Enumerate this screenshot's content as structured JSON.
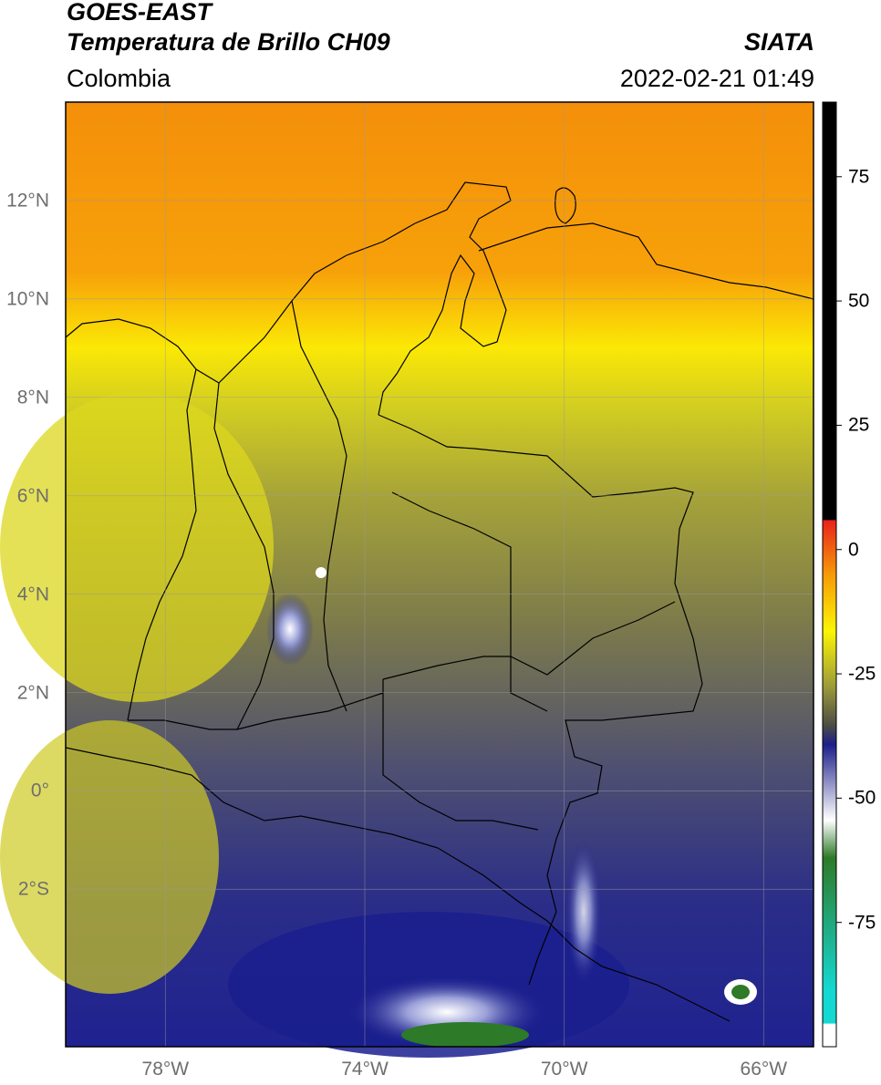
{
  "header": {
    "satellite": "GOES-EAST",
    "product": "Temperatura de Brillo CH09",
    "region": "Colombia",
    "source": "SIATA",
    "datetime": "2022-02-21 01:49"
  },
  "map": {
    "lon_range": [
      -80,
      -65
    ],
    "lat_range": [
      -5.2,
      14
    ],
    "lat_ticks": [
      {
        "value": 12,
        "label": "12°N"
      },
      {
        "value": 10,
        "label": "10°N"
      },
      {
        "value": 8,
        "label": "8°N"
      },
      {
        "value": 6,
        "label": "6°N"
      },
      {
        "value": 4,
        "label": "4°N"
      },
      {
        "value": 2,
        "label": "2°N"
      },
      {
        "value": 0,
        "label": "0°"
      },
      {
        "value": -2,
        "label": "2°S"
      }
    ],
    "lon_ticks": [
      {
        "value": -78,
        "label": "78°W"
      },
      {
        "value": -74,
        "label": "74°W"
      },
      {
        "value": -70,
        "label": "70°W"
      },
      {
        "value": -66,
        "label": "66°W"
      }
    ],
    "grid": true
  },
  "colorbar": {
    "range": [
      -100,
      90
    ],
    "ticks": [
      {
        "value": 75,
        "label": "75"
      },
      {
        "value": 50,
        "label": "50"
      },
      {
        "value": 25,
        "label": "25"
      },
      {
        "value": 0,
        "label": "0"
      },
      {
        "value": -25,
        "label": "-25"
      },
      {
        "value": -50,
        "label": "-50"
      },
      {
        "value": -75,
        "label": "-75"
      }
    ],
    "colors": {
      "black": "#000000",
      "red": "#e8231b",
      "orange": "#f79a08",
      "yellow": "#fbf505",
      "olive": "#8e8c3a",
      "dark_gray": "#4c4c44",
      "navy": "#1c1f8a",
      "white": "#ffffff",
      "green": "#2d7a28",
      "cyan": "#14d8d2"
    }
  }
}
